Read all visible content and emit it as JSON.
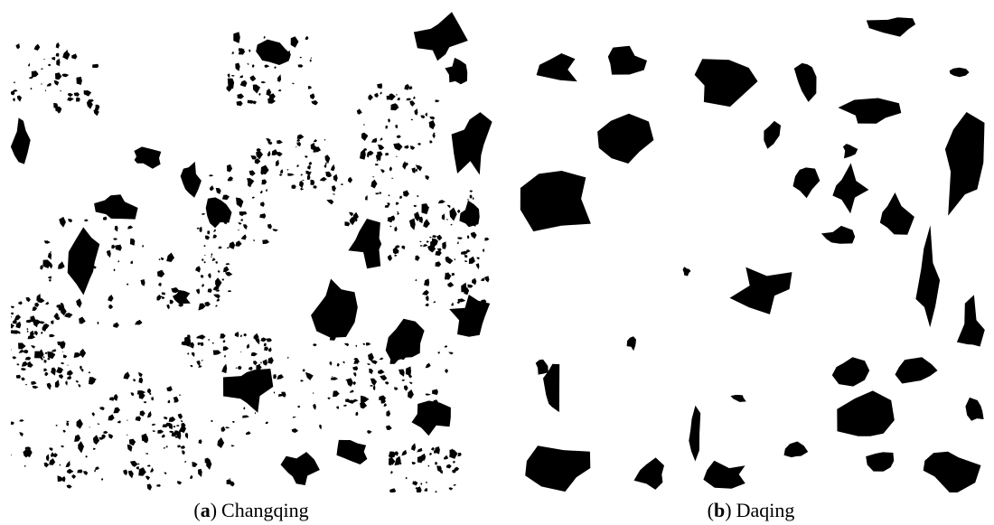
{
  "panels": [
    {
      "caption": {
        "open": "(",
        "label": "a",
        "close": ")",
        "name": "Changqing"
      }
    },
    {
      "caption": {
        "open": "(",
        "label": "b",
        "close": ")",
        "name": "Daqing"
      }
    }
  ]
}
